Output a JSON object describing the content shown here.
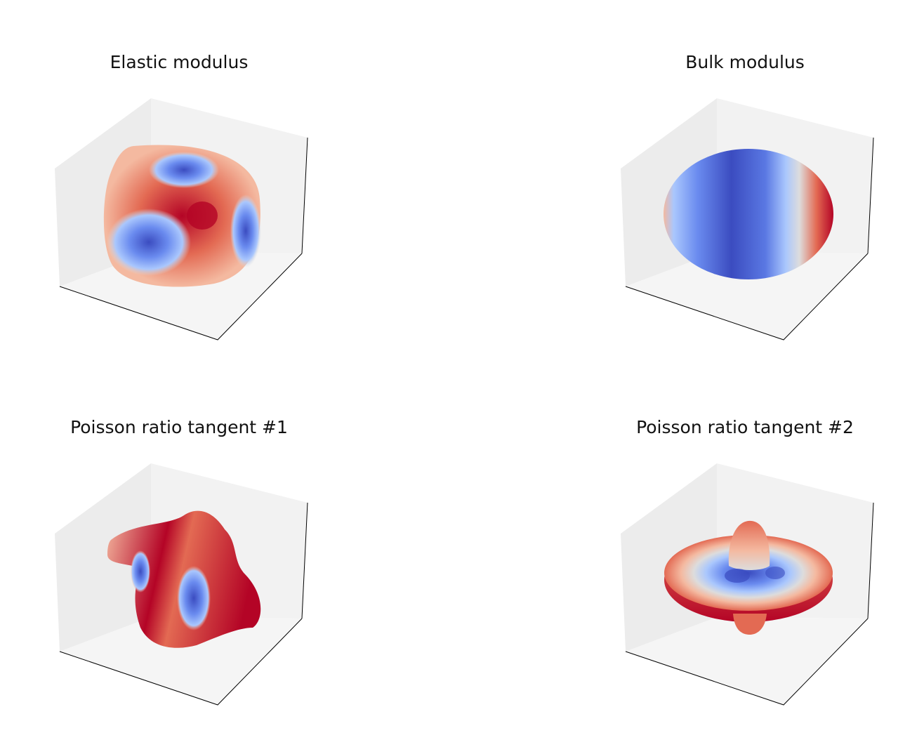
{
  "chart_data": [
    {
      "type": "surface3d",
      "title": "Elastic modulus",
      "colormap": "coolwarm",
      "shape": "rounded-cube",
      "axis_ticks": false,
      "grid": false
    },
    {
      "type": "surface3d",
      "title": "Bulk modulus",
      "colormap": "coolwarm",
      "shape": "ellipsoid",
      "axis_ticks": false,
      "grid": false
    },
    {
      "type": "surface3d",
      "title": "Poisson ratio tangent #1",
      "colormap": "coolwarm",
      "shape": "four-lobed",
      "axis_ticks": false,
      "grid": false
    },
    {
      "type": "surface3d",
      "title": "Poisson ratio tangent #2",
      "colormap": "coolwarm",
      "shape": "disc-with-dome",
      "axis_ticks": false,
      "grid": false
    }
  ],
  "colors": {
    "red": "#b40426",
    "light_red": "#f49a7b",
    "white": "#dddcdc",
    "light_blue": "#aac7fd",
    "blue": "#3b4cc0",
    "pane_left": "#ececec",
    "pane_right": "#f2f2f2",
    "pane_floor": "#f5f5f5",
    "axis_line": "#000000"
  }
}
